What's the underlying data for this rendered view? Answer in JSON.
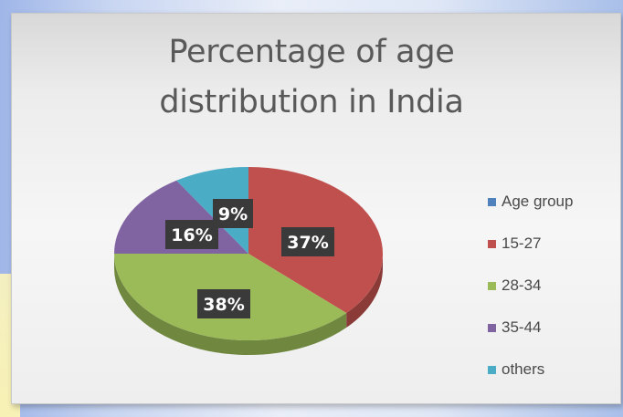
{
  "chart_data": {
    "type": "pie",
    "title": "Percentage of age distribution in India",
    "title_lines": [
      "Percentage of age",
      "distribution in India"
    ],
    "legend_position": "right",
    "slices": [
      {
        "name": "Age group",
        "value": 0,
        "label": "",
        "color": "#4f81bd"
      },
      {
        "name": "15-27",
        "value": 37,
        "label": "37%",
        "color": "#c0504d"
      },
      {
        "name": "28-34",
        "value": 38,
        "label": "38%",
        "color": "#9bbb59"
      },
      {
        "name": "35-44",
        "value": 16,
        "label": "16%",
        "color": "#8064a2"
      },
      {
        "name": "others",
        "value": 9,
        "label": "9%",
        "color": "#4bacc6"
      }
    ]
  }
}
